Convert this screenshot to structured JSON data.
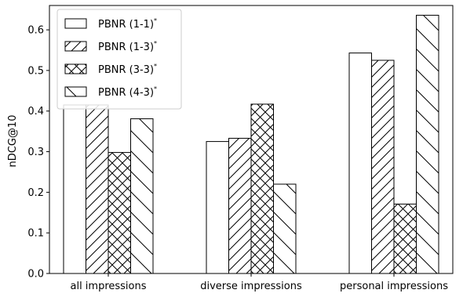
{
  "chart_data": {
    "type": "bar",
    "categories": [
      "all impressions",
      "diverse impressions",
      "personal impressions"
    ],
    "series": [
      {
        "name": "PBNR (1-1)",
        "hatch": "none",
        "values": [
          0.415,
          0.325,
          0.543
        ]
      },
      {
        "name": "PBNR (1-3)",
        "hatch": "diag-forward",
        "values": [
          0.415,
          0.333,
          0.525
        ]
      },
      {
        "name": "PBNR (3-3)",
        "hatch": "crosshatch",
        "values": [
          0.298,
          0.417,
          0.171
        ]
      },
      {
        "name": "PBNR (4-3)",
        "hatch": "diag-back",
        "values": [
          0.381,
          0.22,
          0.636
        ]
      }
    ],
    "legend_sup": "*",
    "ylabel": "nDCG@10",
    "xlabel": "",
    "ylim": [
      0,
      0.66
    ],
    "yticks": [
      "0.0",
      "0.1",
      "0.2",
      "0.3",
      "0.4",
      "0.5",
      "0.6"
    ],
    "legend_position": "top-left",
    "grid": false,
    "colors": {
      "fill": "#ffffff",
      "stroke": "#000000"
    }
  }
}
